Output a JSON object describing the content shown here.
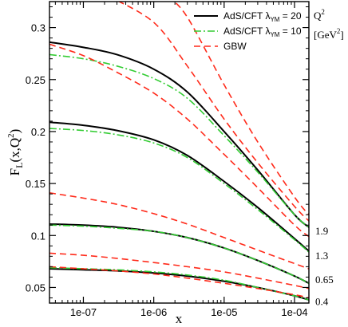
{
  "chart_data": {
    "type": "line",
    "x_scale": "log",
    "xlim": [
      3.3e-08,
      0.00016
    ],
    "ylim": [
      0.035,
      0.325
    ],
    "xlabel": "x",
    "ylabel_main": "F",
    "ylabel_sub": "L",
    "ylabel_args": "(x,Q",
    "ylabel_sup": "2",
    "ylabel_close": ")",
    "x_ticks": [
      {
        "value": 1e-07,
        "label": "1e-07"
      },
      {
        "value": 1e-06,
        "label": "1e-06"
      },
      {
        "value": 1e-05,
        "label": "1e-05"
      },
      {
        "value": 0.0001,
        "label": "1e-04"
      }
    ],
    "y_ticks": [
      {
        "value": 0.05,
        "label": "0.05"
      },
      {
        "value": 0.1,
        "label": "0.1"
      },
      {
        "value": 0.15,
        "label": "0.15"
      },
      {
        "value": 0.2,
        "label": "0.2"
      },
      {
        "value": 0.25,
        "label": "0.25"
      },
      {
        "value": 0.3,
        "label": "0.3"
      }
    ],
    "legend": {
      "placement": "top-right",
      "entries": [
        {
          "text": "AdS/CFT  λ",
          "sub": "YM",
          "rest": " = 20",
          "color": "#000000",
          "dash": "solid"
        },
        {
          "text": "AdS/CFT  λ",
          "sub": "YM",
          "rest": " = 10",
          "color": "#33cc33",
          "dash": "dashdot"
        },
        {
          "text": "GBW",
          "sub": "",
          "rest": "",
          "color": "#ff2a1a",
          "dash": "dashed"
        }
      ]
    },
    "q2_header": "Q",
    "q2_header_sup": "2",
    "q2_unit": "[GeV",
    "q2_unit_sup": "2",
    "q2_unit_close": "]",
    "q2_labels": [
      {
        "text": "1.9",
        "y": 0.105
      },
      {
        "text": "1.3",
        "y": 0.081
      },
      {
        "text": "0.65",
        "y": 0.058
      },
      {
        "text": "0.4",
        "y": 0.037
      }
    ],
    "series": [
      {
        "style": "ads20",
        "points": [
          [
            3.3e-08,
            0.286
          ],
          [
            1e-07,
            0.281
          ],
          [
            3e-07,
            0.274
          ],
          [
            1e-06,
            0.26
          ],
          [
            3e-06,
            0.238
          ],
          [
            1e-05,
            0.2
          ],
          [
            3e-05,
            0.163
          ],
          [
            0.0001,
            0.12
          ],
          [
            0.00016,
            0.108
          ]
        ]
      },
      {
        "style": "ads10",
        "points": [
          [
            3.3e-08,
            0.274
          ],
          [
            1e-07,
            0.27
          ],
          [
            3e-07,
            0.263
          ],
          [
            1e-06,
            0.251
          ],
          [
            3e-06,
            0.232
          ],
          [
            1e-05,
            0.196
          ],
          [
            3e-05,
            0.161
          ],
          [
            0.0001,
            0.12
          ],
          [
            0.00016,
            0.108
          ]
        ]
      },
      {
        "style": "ads20",
        "points": [
          [
            3.3e-08,
            0.209
          ],
          [
            1e-07,
            0.206
          ],
          [
            3e-07,
            0.201
          ],
          [
            1e-06,
            0.192
          ],
          [
            3e-06,
            0.177
          ],
          [
            1e-05,
            0.152
          ],
          [
            3e-05,
            0.127
          ],
          [
            0.0001,
            0.097
          ],
          [
            0.00016,
            0.085
          ]
        ]
      },
      {
        "style": "ads10",
        "points": [
          [
            3.3e-08,
            0.203
          ],
          [
            1e-07,
            0.201
          ],
          [
            3e-07,
            0.197
          ],
          [
            1e-06,
            0.189
          ],
          [
            3e-06,
            0.175
          ],
          [
            1e-05,
            0.15
          ],
          [
            3e-05,
            0.125
          ],
          [
            0.0001,
            0.096
          ],
          [
            0.00016,
            0.084
          ]
        ]
      },
      {
        "style": "ads20",
        "points": [
          [
            3.3e-08,
            0.111
          ],
          [
            1e-07,
            0.11
          ],
          [
            3e-07,
            0.108
          ],
          [
            1e-06,
            0.104
          ],
          [
            3e-06,
            0.098
          ],
          [
            1e-05,
            0.088
          ],
          [
            3e-05,
            0.076
          ],
          [
            0.0001,
            0.061
          ],
          [
            0.00016,
            0.054
          ]
        ]
      },
      {
        "style": "ads10",
        "points": [
          [
            3.3e-08,
            0.11
          ],
          [
            1e-07,
            0.109
          ],
          [
            3e-07,
            0.107
          ],
          [
            1e-06,
            0.104
          ],
          [
            3e-06,
            0.098
          ],
          [
            1e-05,
            0.088
          ],
          [
            3e-05,
            0.076
          ],
          [
            0.0001,
            0.061
          ],
          [
            0.00016,
            0.054
          ]
        ]
      },
      {
        "style": "ads20",
        "points": [
          [
            3.3e-08,
            0.068
          ],
          [
            1e-07,
            0.067
          ],
          [
            3e-07,
            0.066
          ],
          [
            1e-06,
            0.064
          ],
          [
            3e-06,
            0.061
          ],
          [
            1e-05,
            0.056
          ],
          [
            3e-05,
            0.05
          ],
          [
            0.0001,
            0.042
          ],
          [
            0.00016,
            0.038
          ]
        ]
      },
      {
        "style": "ads10",
        "points": [
          [
            3.3e-08,
            0.069
          ],
          [
            1e-07,
            0.068
          ],
          [
            3e-07,
            0.067
          ],
          [
            1e-06,
            0.065
          ],
          [
            3e-06,
            0.062
          ],
          [
            1e-05,
            0.057
          ],
          [
            3e-05,
            0.05
          ],
          [
            0.0001,
            0.042
          ],
          [
            0.00016,
            0.038
          ]
        ]
      },
      {
        "style": "gbw",
        "points": [
          [
            2.3e-07,
            0.33
          ],
          [
            1e-06,
            0.305
          ],
          [
            3e-06,
            0.263
          ],
          [
            1e-05,
            0.212
          ],
          [
            3e-05,
            0.17
          ],
          [
            0.0001,
            0.128
          ],
          [
            0.00016,
            0.114
          ]
        ]
      },
      {
        "style": "gbw",
        "points": [
          [
            1.6e-06,
            0.33
          ],
          [
            3e-06,
            0.31
          ],
          [
            1e-05,
            0.245
          ],
          [
            3e-05,
            0.19
          ],
          [
            0.0001,
            0.137
          ],
          [
            0.00016,
            0.12
          ]
        ]
      },
      {
        "style": "gbw",
        "points": [
          [
            3.3e-08,
            0.284
          ],
          [
            1e-07,
            0.273
          ],
          [
            3e-07,
            0.257
          ],
          [
            1e-06,
            0.237
          ],
          [
            3e-06,
            0.212
          ],
          [
            1e-05,
            0.178
          ],
          [
            3e-05,
            0.146
          ],
          [
            0.0001,
            0.11
          ],
          [
            0.00016,
            0.099
          ]
        ]
      },
      {
        "style": "gbw",
        "points": [
          [
            3.3e-08,
            0.141
          ],
          [
            1e-07,
            0.136
          ],
          [
            3e-07,
            0.13
          ],
          [
            1e-06,
            0.121
          ],
          [
            3e-06,
            0.111
          ],
          [
            1e-05,
            0.098
          ],
          [
            3e-05,
            0.086
          ],
          [
            0.0001,
            0.073
          ],
          [
            0.00016,
            0.068
          ]
        ]
      },
      {
        "style": "gbw",
        "points": [
          [
            3.3e-08,
            0.083
          ],
          [
            1e-07,
            0.081
          ],
          [
            3e-07,
            0.078
          ],
          [
            1e-06,
            0.074
          ],
          [
            3e-06,
            0.07
          ],
          [
            1e-05,
            0.065
          ],
          [
            3e-05,
            0.059
          ],
          [
            0.0001,
            0.052
          ],
          [
            0.00016,
            0.049
          ]
        ]
      },
      {
        "style": "gbw",
        "points": [
          [
            3.3e-08,
            0.07
          ],
          [
            1e-07,
            0.068
          ],
          [
            3e-07,
            0.066
          ],
          [
            1e-06,
            0.063
          ],
          [
            3e-06,
            0.059
          ],
          [
            1e-05,
            0.054
          ],
          [
            3e-05,
            0.049
          ],
          [
            0.0001,
            0.043
          ],
          [
            0.00016,
            0.04
          ]
        ]
      }
    ],
    "styles": {
      "ads20": {
        "color": "#000000",
        "dash": ""
      },
      "ads10": {
        "color": "#33cc33",
        "dash": "9,3,2,3"
      },
      "gbw": {
        "color": "#ff2a1a",
        "dash": "8,5"
      }
    }
  }
}
